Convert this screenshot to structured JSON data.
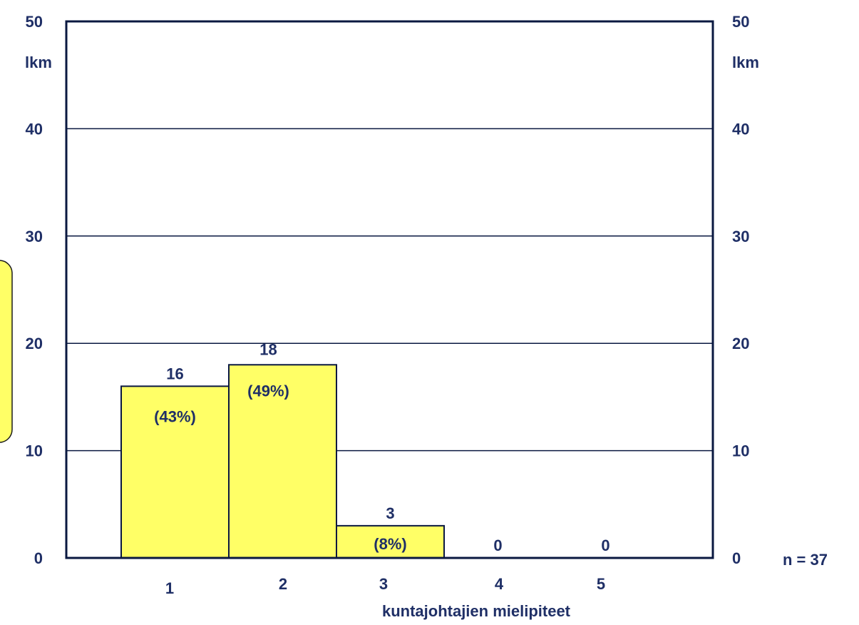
{
  "chart_data": {
    "type": "bar",
    "categories": [
      "1",
      "2",
      "3",
      "4",
      "5"
    ],
    "values": [
      16,
      18,
      3,
      0,
      0
    ],
    "value_labels": [
      "16",
      "18",
      "3",
      "0",
      "0"
    ],
    "percent_labels": [
      "(43%)",
      "(49%)",
      "(8%)",
      "",
      ""
    ],
    "xlabel": "kuntajohtajien mielipiteet",
    "ylabel_left": "lkm",
    "ylabel_right": "lkm",
    "ylim": [
      0,
      50
    ],
    "yticks": [
      "0",
      "10",
      "20",
      "30",
      "40",
      "50"
    ],
    "grid": true,
    "n_label": "n = 37",
    "colors": {
      "bar": "#ffff66",
      "ink": "#1f2f66",
      "frame": "#0a1840",
      "note_box": "#ffff66"
    }
  }
}
